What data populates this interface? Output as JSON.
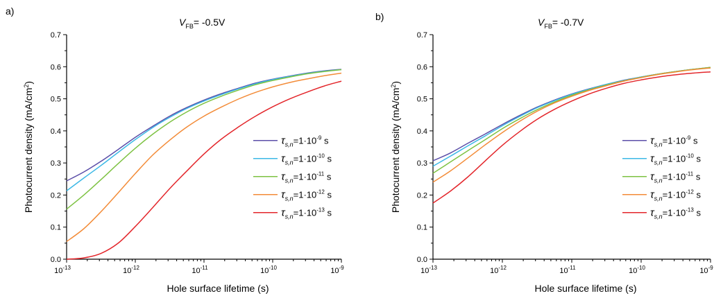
{
  "chart_data": [
    {
      "type": "line",
      "panel_label": "a)",
      "title": {
        "main": "V",
        "sub": "FB",
        "rest": "= -0.5V"
      },
      "xlabel": "Hole surface lifetime (s)",
      "ylabel": {
        "main": "Photocurrent density (mA/cm",
        "sup": "2",
        "end": ")"
      },
      "x_scale": "log",
      "xlim_exponent": [
        -13,
        -9
      ],
      "x_ticks": [
        {
          "base": "10",
          "exp": "-13"
        },
        {
          "base": "10",
          "exp": "-12"
        },
        {
          "base": "10",
          "exp": "-11"
        },
        {
          "base": "10",
          "exp": "-10"
        },
        {
          "base": "10",
          "exp": "-9"
        }
      ],
      "ylim": [
        0,
        0.7
      ],
      "y_ticks": [
        "0.0",
        "0.1",
        "0.2",
        "0.3",
        "0.4",
        "0.5",
        "0.6",
        "0.7"
      ],
      "legend_position": "right, middle",
      "x_exponents": [
        -13,
        -12.75,
        -12.5,
        -12.25,
        -12,
        -11.75,
        -11.5,
        -11.25,
        -11,
        -10.75,
        -10.5,
        -10.25,
        -10,
        -9.75,
        -9.5,
        -9.25,
        -9
      ],
      "series": [
        {
          "label": {
            "sub": "s,n",
            "base": "=1·10",
            "exp": "-9",
            "unit": " s"
          },
          "color": "#5b4ea8",
          "values": [
            0.244,
            0.272,
            0.305,
            0.342,
            0.38,
            0.414,
            0.446,
            0.473,
            0.496,
            0.516,
            0.533,
            0.549,
            0.561,
            0.571,
            0.58,
            0.587,
            0.592
          ]
        },
        {
          "label": {
            "sub": "s,n",
            "base": "=1·10",
            "exp": "-10",
            "unit": " s"
          },
          "color": "#3bb8e6",
          "values": [
            0.213,
            0.253,
            0.292,
            0.333,
            0.373,
            0.41,
            0.442,
            0.47,
            0.493,
            0.513,
            0.531,
            0.547,
            0.56,
            0.57,
            0.579,
            0.586,
            0.591
          ]
        },
        {
          "label": {
            "sub": "s,n",
            "base": "=1·10",
            "exp": "-11",
            "unit": " s"
          },
          "color": "#7dc242",
          "values": [
            0.156,
            0.2,
            0.248,
            0.298,
            0.346,
            0.389,
            0.427,
            0.459,
            0.486,
            0.508,
            0.527,
            0.544,
            0.557,
            0.568,
            0.578,
            0.585,
            0.591
          ]
        },
        {
          "label": {
            "sub": "s,n",
            "base": "=1·10",
            "exp": "-12",
            "unit": " s"
          },
          "color": "#f38b37",
          "values": [
            0.055,
            0.095,
            0.148,
            0.207,
            0.267,
            0.324,
            0.371,
            0.412,
            0.446,
            0.474,
            0.499,
            0.52,
            0.537,
            0.551,
            0.562,
            0.572,
            0.58
          ]
        },
        {
          "label": {
            "sub": "s,n",
            "base": "=1·10",
            "exp": "-13",
            "unit": " s"
          },
          "color": "#e3252a",
          "values": [
            0.0,
            0.004,
            0.018,
            0.05,
            0.102,
            0.16,
            0.22,
            0.275,
            0.328,
            0.374,
            0.412,
            0.446,
            0.475,
            0.5,
            0.521,
            0.54,
            0.555
          ]
        }
      ]
    },
    {
      "type": "line",
      "panel_label": "b)",
      "title": {
        "main": "V",
        "sub": "FB",
        "rest": "= -0.7V"
      },
      "xlabel": "Hole surface lifetime (s)",
      "ylabel": {
        "main": "Photocurrent density (mA/cm",
        "sup": "2",
        "end": ")"
      },
      "x_scale": "log",
      "xlim_exponent": [
        -13,
        -9
      ],
      "x_ticks": [
        {
          "base": "10",
          "exp": "-13"
        },
        {
          "base": "10",
          "exp": "-12"
        },
        {
          "base": "10",
          "exp": "-11"
        },
        {
          "base": "10",
          "exp": "-10"
        },
        {
          "base": "10",
          "exp": "-9"
        }
      ],
      "ylim": [
        0,
        0.7
      ],
      "y_ticks": [
        "0.0",
        "0.1",
        "0.2",
        "0.3",
        "0.4",
        "0.5",
        "0.6",
        "0.7"
      ],
      "legend_position": "right, middle",
      "x_exponents": [
        -13,
        -12.75,
        -12.5,
        -12.25,
        -12,
        -11.75,
        -11.5,
        -11.25,
        -11,
        -10.75,
        -10.5,
        -10.25,
        -10,
        -9.75,
        -9.5,
        -9.25,
        -9
      ],
      "series": [
        {
          "label": {
            "sub": "s,n",
            "base": "=1·10",
            "exp": "-9",
            "unit": " s"
          },
          "color": "#5b4ea8",
          "values": [
            0.307,
            0.331,
            0.361,
            0.39,
            0.42,
            0.448,
            0.474,
            0.496,
            0.515,
            0.531,
            0.545,
            0.558,
            0.568,
            0.577,
            0.585,
            0.592,
            0.598
          ]
        },
        {
          "label": {
            "sub": "s,n",
            "base": "=1·10",
            "exp": "-10",
            "unit": " s"
          },
          "color": "#3bb8e6",
          "values": [
            0.29,
            0.321,
            0.353,
            0.384,
            0.416,
            0.445,
            0.472,
            0.494,
            0.514,
            0.53,
            0.545,
            0.557,
            0.568,
            0.577,
            0.585,
            0.592,
            0.597
          ]
        },
        {
          "label": {
            "sub": "s,n",
            "base": "=1·10",
            "exp": "-11",
            "unit": " s"
          },
          "color": "#7dc242",
          "values": [
            0.268,
            0.303,
            0.338,
            0.372,
            0.407,
            0.438,
            0.466,
            0.49,
            0.511,
            0.528,
            0.543,
            0.556,
            0.567,
            0.577,
            0.585,
            0.592,
            0.598
          ]
        },
        {
          "label": {
            "sub": "s,n",
            "base": "=1·10",
            "exp": "-12",
            "unit": " s"
          },
          "color": "#f38b37",
          "values": [
            0.24,
            0.275,
            0.315,
            0.356,
            0.395,
            0.43,
            0.461,
            0.487,
            0.508,
            0.526,
            0.541,
            0.555,
            0.566,
            0.576,
            0.584,
            0.591,
            0.596
          ]
        },
        {
          "label": {
            "sub": "s,n",
            "base": "=1·10",
            "exp": "-13",
            "unit": " s"
          },
          "color": "#e3252a",
          "values": [
            0.175,
            0.212,
            0.256,
            0.306,
            0.355,
            0.398,
            0.436,
            0.467,
            0.493,
            0.515,
            0.533,
            0.548,
            0.559,
            0.568,
            0.575,
            0.58,
            0.584
          ]
        }
      ]
    }
  ]
}
